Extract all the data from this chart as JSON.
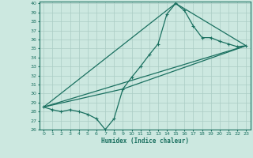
{
  "xlabel": "Humidex (Indice chaleur)",
  "bg_color": "#cce8e0",
  "grid_color": "#aaccc4",
  "line_color": "#1a7060",
  "xlim": [
    -0.5,
    23.5
  ],
  "ylim": [
    26,
    40.2
  ],
  "xticks": [
    0,
    1,
    2,
    3,
    4,
    5,
    6,
    7,
    8,
    9,
    10,
    11,
    12,
    13,
    14,
    15,
    16,
    17,
    18,
    19,
    20,
    21,
    22,
    23
  ],
  "yticks": [
    26,
    27,
    28,
    29,
    30,
    31,
    32,
    33,
    34,
    35,
    36,
    37,
    38,
    39,
    40
  ],
  "line1_x": [
    0,
    1,
    2,
    3,
    4,
    5,
    6,
    7,
    8,
    9,
    10,
    11,
    12,
    13,
    14,
    15,
    16,
    17,
    18,
    19,
    20,
    21,
    22,
    23
  ],
  "line1_y": [
    28.5,
    28.2,
    28.0,
    28.2,
    28.0,
    27.7,
    27.2,
    26.0,
    27.2,
    30.5,
    31.8,
    33.0,
    34.3,
    35.5,
    38.8,
    40.0,
    39.2,
    37.5,
    36.2,
    36.2,
    35.8,
    35.5,
    35.2,
    35.3
  ],
  "line2_x": [
    0,
    23
  ],
  "line2_y": [
    28.5,
    35.3
  ],
  "line3_x": [
    0,
    9,
    23
  ],
  "line3_y": [
    28.5,
    30.5,
    35.3
  ],
  "line4_x": [
    0,
    15,
    23
  ],
  "line4_y": [
    28.5,
    40.0,
    35.3
  ]
}
